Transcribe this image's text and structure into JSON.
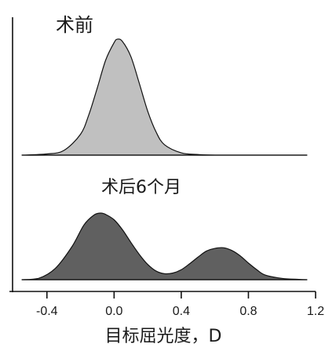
{
  "chart_data": {
    "type": "area",
    "xlabel": "目标屈光度，D",
    "xlim": [
      -0.6,
      1.2
    ],
    "xticks": [
      -0.4,
      0.0,
      0.4,
      0.8,
      1.2
    ],
    "xtick_labels": [
      "-0.4",
      "0.0",
      "0.4",
      "0.8",
      "1.2"
    ],
    "grid": false,
    "panels": [
      {
        "title": "术前",
        "color": "#c0c0c0",
        "x": [
          -0.55,
          -0.4,
          -0.3,
          -0.2,
          -0.15,
          -0.1,
          -0.05,
          0.0,
          0.02,
          0.05,
          0.1,
          0.15,
          0.2,
          0.25,
          0.3,
          0.4,
          0.5,
          0.6,
          0.8,
          1.0,
          1.15
        ],
        "y": [
          0.0,
          0.01,
          0.04,
          0.18,
          0.35,
          0.58,
          0.82,
          0.97,
          1.0,
          0.98,
          0.85,
          0.62,
          0.38,
          0.2,
          0.09,
          0.02,
          0.005,
          0.0,
          0.0,
          0.0,
          0.0
        ]
      },
      {
        "title": "术后6个月",
        "color": "#606060",
        "x": [
          -0.55,
          -0.45,
          -0.35,
          -0.25,
          -0.18,
          -0.12,
          -0.08,
          -0.05,
          0.0,
          0.05,
          0.1,
          0.15,
          0.2,
          0.25,
          0.3,
          0.35,
          0.4,
          0.45,
          0.5,
          0.55,
          0.6,
          0.65,
          0.7,
          0.75,
          0.8,
          0.85,
          0.9,
          1.0,
          1.1,
          1.15
        ],
        "y": [
          0.0,
          0.02,
          0.17,
          0.5,
          0.82,
          0.97,
          1.0,
          0.98,
          0.9,
          0.75,
          0.56,
          0.38,
          0.23,
          0.13,
          0.09,
          0.1,
          0.15,
          0.24,
          0.34,
          0.43,
          0.47,
          0.48,
          0.44,
          0.36,
          0.25,
          0.15,
          0.07,
          0.02,
          0.005,
          0.0
        ]
      }
    ]
  }
}
